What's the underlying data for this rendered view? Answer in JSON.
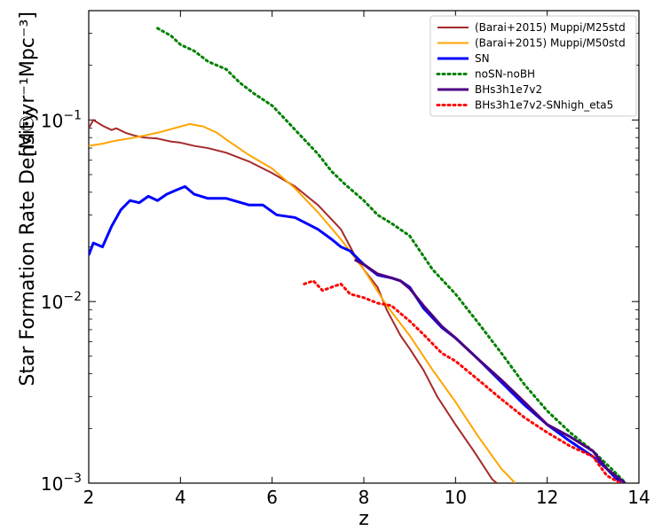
{
  "chart_data": {
    "type": "line",
    "xlabel": "z",
    "ylabel_text": "Star Formation Rate Density",
    "ylabel_unit": "[M☉yr⁻¹Mpc⁻³]",
    "xlim": [
      2,
      14
    ],
    "ylim": [
      0.001,
      0.4
    ],
    "yscale": "log",
    "x_ticks": [
      2,
      4,
      6,
      8,
      10,
      12,
      14
    ],
    "x_tick_labels": [
      "2",
      "4",
      "6",
      "8",
      "10",
      "12",
      "14"
    ],
    "y_ticks": [
      0.001,
      0.01,
      0.1
    ],
    "y_tick_labels": [
      {
        "base": "10",
        "exp": "−3"
      },
      {
        "base": "10",
        "exp": "−2"
      },
      {
        "base": "10",
        "exp": "−1"
      }
    ],
    "grid": false,
    "legend_position": "top-right",
    "series": [
      {
        "name": "(Barai+2015) Muppi/M25std",
        "color": "#a52a2a",
        "style": "solid",
        "width": 2,
        "points": [
          [
            2.0,
            0.09
          ],
          [
            2.1,
            0.1
          ],
          [
            2.3,
            0.093
          ],
          [
            2.5,
            0.088
          ],
          [
            2.6,
            0.09
          ],
          [
            2.8,
            0.085
          ],
          [
            3.0,
            0.082
          ],
          [
            3.2,
            0.08
          ],
          [
            3.5,
            0.079
          ],
          [
            3.8,
            0.076
          ],
          [
            4.0,
            0.075
          ],
          [
            4.3,
            0.072
          ],
          [
            4.6,
            0.07
          ],
          [
            5.0,
            0.066
          ],
          [
            5.5,
            0.059
          ],
          [
            6.0,
            0.051
          ],
          [
            6.5,
            0.043
          ],
          [
            7.0,
            0.034
          ],
          [
            7.5,
            0.025
          ],
          [
            7.8,
            0.018
          ],
          [
            8.0,
            0.015
          ],
          [
            8.3,
            0.012
          ],
          [
            8.5,
            0.009
          ],
          [
            8.8,
            0.0065
          ],
          [
            9.0,
            0.0055
          ],
          [
            9.3,
            0.0042
          ],
          [
            9.6,
            0.003
          ],
          [
            10.0,
            0.0021
          ],
          [
            10.4,
            0.0015
          ],
          [
            10.8,
            0.00105
          ],
          [
            10.9,
            0.001
          ]
        ]
      },
      {
        "name": "(Barai+2015) Muppi/M50std",
        "color": "#ffa500",
        "style": "solid",
        "width": 2,
        "points": [
          [
            2.0,
            0.072
          ],
          [
            2.3,
            0.074
          ],
          [
            2.6,
            0.077
          ],
          [
            3.0,
            0.08
          ],
          [
            3.5,
            0.085
          ],
          [
            4.0,
            0.092
          ],
          [
            4.2,
            0.095
          ],
          [
            4.5,
            0.092
          ],
          [
            4.8,
            0.085
          ],
          [
            5.0,
            0.078
          ],
          [
            5.5,
            0.064
          ],
          [
            6.0,
            0.054
          ],
          [
            6.5,
            0.042
          ],
          [
            7.0,
            0.031
          ],
          [
            7.5,
            0.022
          ],
          [
            8.0,
            0.015
          ],
          [
            8.5,
            0.0095
          ],
          [
            9.0,
            0.0065
          ],
          [
            9.5,
            0.0042
          ],
          [
            10.0,
            0.0028
          ],
          [
            10.5,
            0.0018
          ],
          [
            11.0,
            0.0012
          ],
          [
            11.3,
            0.001
          ]
        ]
      },
      {
        "name": "SN",
        "color": "#0000ff",
        "style": "solid",
        "width": 3,
        "points": [
          [
            2.0,
            0.018
          ],
          [
            2.1,
            0.021
          ],
          [
            2.3,
            0.02
          ],
          [
            2.5,
            0.026
          ],
          [
            2.7,
            0.032
          ],
          [
            2.9,
            0.036
          ],
          [
            3.1,
            0.035
          ],
          [
            3.3,
            0.038
          ],
          [
            3.5,
            0.036
          ],
          [
            3.7,
            0.039
          ],
          [
            3.9,
            0.041
          ],
          [
            4.1,
            0.043
          ],
          [
            4.3,
            0.039
          ],
          [
            4.6,
            0.037
          ],
          [
            5.0,
            0.037
          ],
          [
            5.5,
            0.034
          ],
          [
            5.8,
            0.034
          ],
          [
            6.1,
            0.03
          ],
          [
            6.5,
            0.029
          ],
          [
            7.0,
            0.025
          ],
          [
            7.3,
            0.022
          ],
          [
            7.5,
            0.02
          ],
          [
            7.7,
            0.019
          ],
          [
            8.0,
            0.016
          ],
          [
            8.3,
            0.014
          ],
          [
            8.6,
            0.0135
          ],
          [
            8.8,
            0.013
          ],
          [
            9.0,
            0.012
          ],
          [
            9.3,
            0.0092
          ],
          [
            9.7,
            0.0072
          ],
          [
            10.0,
            0.0063
          ],
          [
            10.5,
            0.0048
          ],
          [
            11.0,
            0.0036
          ],
          [
            11.5,
            0.0027
          ],
          [
            12.0,
            0.0021
          ],
          [
            12.5,
            0.0017
          ],
          [
            13.0,
            0.0014
          ],
          [
            13.3,
            0.0012
          ],
          [
            13.6,
            0.001
          ]
        ]
      },
      {
        "name": "noSN-noBH",
        "color": "#008000",
        "style": "dotted",
        "width": 3,
        "points": [
          [
            3.5,
            0.32
          ],
          [
            3.8,
            0.29
          ],
          [
            4.0,
            0.26
          ],
          [
            4.3,
            0.24
          ],
          [
            4.6,
            0.21
          ],
          [
            5.0,
            0.19
          ],
          [
            5.3,
            0.16
          ],
          [
            5.6,
            0.14
          ],
          [
            6.0,
            0.12
          ],
          [
            6.3,
            0.1
          ],
          [
            6.6,
            0.083
          ],
          [
            7.0,
            0.065
          ],
          [
            7.3,
            0.052
          ],
          [
            7.6,
            0.044
          ],
          [
            8.0,
            0.036
          ],
          [
            8.3,
            0.03
          ],
          [
            8.6,
            0.027
          ],
          [
            9.0,
            0.023
          ],
          [
            9.5,
            0.015
          ],
          [
            10.0,
            0.011
          ],
          [
            10.5,
            0.0076
          ],
          [
            11.0,
            0.0052
          ],
          [
            11.5,
            0.0035
          ],
          [
            12.0,
            0.0025
          ],
          [
            12.5,
            0.0019
          ],
          [
            13.0,
            0.0015
          ],
          [
            13.4,
            0.0012
          ],
          [
            13.8,
            0.00095
          ]
        ]
      },
      {
        "name": "BHs3h1e7v2",
        "color": "#4b0082",
        "style": "solid",
        "width": 3,
        "points": [
          [
            7.8,
            0.017
          ],
          [
            8.0,
            0.016
          ],
          [
            8.3,
            0.0142
          ],
          [
            8.6,
            0.0135
          ],
          [
            8.8,
            0.013
          ],
          [
            9.0,
            0.0118
          ],
          [
            9.3,
            0.0095
          ],
          [
            9.7,
            0.0073
          ],
          [
            10.0,
            0.0063
          ],
          [
            10.5,
            0.0048
          ],
          [
            11.0,
            0.0037
          ],
          [
            11.5,
            0.0028
          ],
          [
            12.0,
            0.0021
          ],
          [
            12.5,
            0.0018
          ],
          [
            13.0,
            0.0015
          ],
          [
            13.3,
            0.0012
          ],
          [
            13.7,
            0.001
          ]
        ]
      },
      {
        "name": "BHs3h1e7v2-SNhigh_eta5",
        "color": "#ff0000",
        "style": "dotted",
        "width": 3,
        "points": [
          [
            6.7,
            0.0125
          ],
          [
            6.9,
            0.013
          ],
          [
            7.1,
            0.0115
          ],
          [
            7.3,
            0.012
          ],
          [
            7.5,
            0.0125
          ],
          [
            7.7,
            0.011
          ],
          [
            8.0,
            0.0105
          ],
          [
            8.3,
            0.0098
          ],
          [
            8.6,
            0.0095
          ],
          [
            9.0,
            0.0078
          ],
          [
            9.3,
            0.0066
          ],
          [
            9.7,
            0.0052
          ],
          [
            10.0,
            0.0047
          ],
          [
            10.5,
            0.0037
          ],
          [
            11.0,
            0.0029
          ],
          [
            11.5,
            0.0023
          ],
          [
            12.0,
            0.0019
          ],
          [
            12.5,
            0.0016
          ],
          [
            13.0,
            0.0014
          ],
          [
            13.3,
            0.0011
          ],
          [
            13.6,
            0.001
          ]
        ]
      }
    ]
  }
}
